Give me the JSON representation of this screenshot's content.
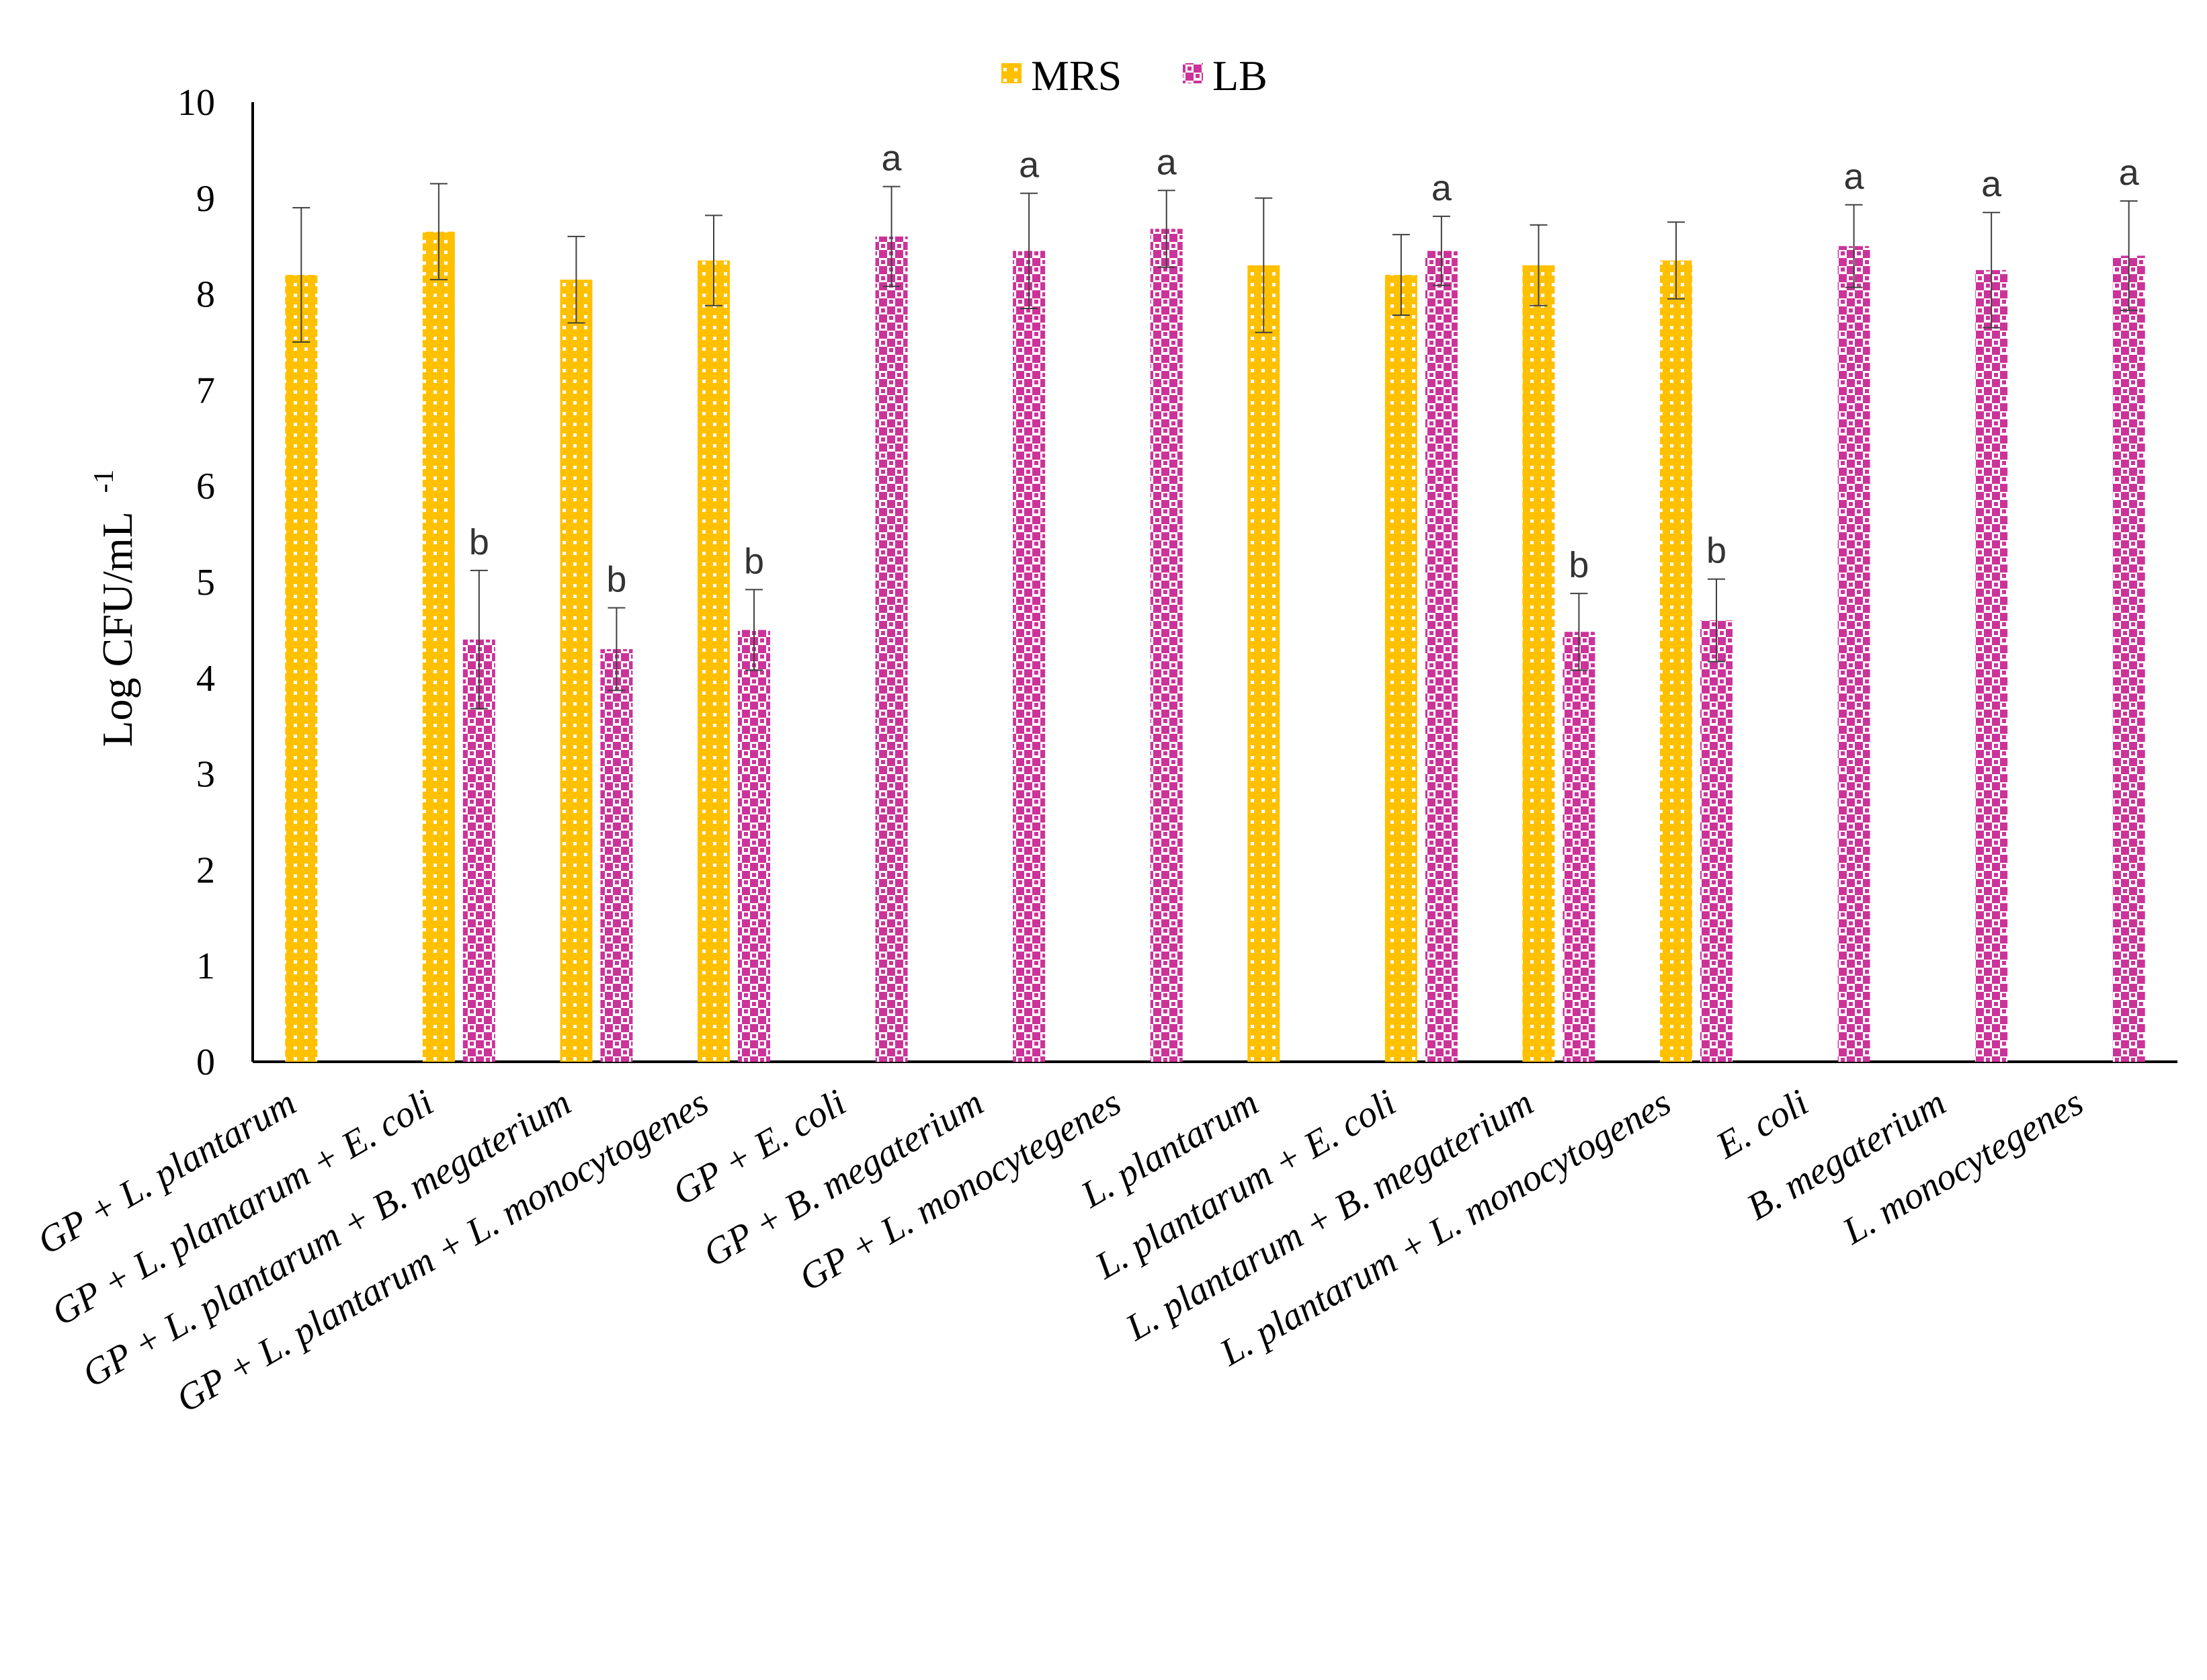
{
  "chart_data": {
    "type": "bar",
    "title": "",
    "xlabel": "",
    "ylabel": "Log CFU/mL",
    "ylabel_superscript": "-1",
    "ylim": [
      0,
      10
    ],
    "yticks": [
      0,
      1,
      2,
      3,
      4,
      5,
      6,
      7,
      8,
      9,
      10
    ],
    "grid": false,
    "legend_position": "top-center",
    "categories": [
      "GP + L. plantarum",
      "GP + L. plantarum + E. coli",
      "GP + L. plantarum + B. megaterium",
      "GP + L. plantarum + L. monocytogenes",
      "GP + E. coli",
      "GP + B. megaterium",
      "GP + L. monocytegenes",
      "L. plantarum",
      "L. plantarum + E. coli",
      "L. plantarum + B. megaterium",
      "L. plantarum + L. monocytogenes",
      "E. coli",
      "B. megaterium",
      "L. monocytegenes"
    ],
    "series": [
      {
        "name": "MRS",
        "color": "#FFC000",
        "values": [
          8.2,
          8.65,
          8.15,
          8.35,
          null,
          null,
          null,
          8.3,
          8.2,
          8.3,
          8.35,
          null,
          null,
          null
        ],
        "errors": [
          0.7,
          0.5,
          0.45,
          0.47,
          null,
          null,
          null,
          0.7,
          0.42,
          0.42,
          0.4,
          null,
          null,
          null
        ],
        "annotations": [
          "",
          "",
          "",
          "",
          "",
          "",
          "",
          "",
          "",
          "",
          "",
          "",
          "",
          ""
        ]
      },
      {
        "name": "LB",
        "color": "#CC3399",
        "values": [
          null,
          4.4,
          4.3,
          4.5,
          8.6,
          8.45,
          8.68,
          null,
          8.45,
          4.48,
          4.6,
          8.5,
          8.25,
          8.4
        ],
        "errors": [
          null,
          0.72,
          0.43,
          0.42,
          0.52,
          0.6,
          0.4,
          null,
          0.36,
          0.4,
          0.43,
          0.43,
          0.6,
          0.57
        ],
        "annotations": [
          "",
          "b",
          "b",
          "b",
          "a",
          "a",
          "a",
          "",
          "a",
          "b",
          "b",
          "a",
          "a",
          "a"
        ]
      }
    ]
  }
}
